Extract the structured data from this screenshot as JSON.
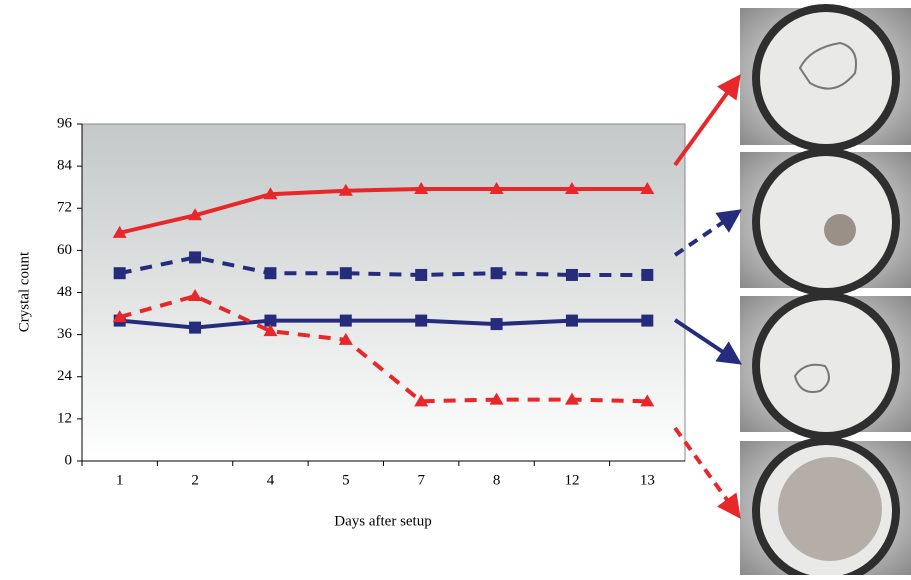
{
  "chart_data": {
    "type": "line",
    "y_label": "Crystal count",
    "x_label": "Days after setup",
    "categories": [
      "1",
      "2",
      "4",
      "5",
      "7",
      "8",
      "12",
      "13"
    ],
    "ylim": [
      0,
      96
    ],
    "yticks": [
      0,
      12,
      24,
      36,
      48,
      60,
      72,
      84,
      96
    ],
    "series": [
      {
        "color": "#e8272a",
        "dashed": false,
        "marker": "triangle",
        "values": [
          65,
          70,
          76,
          77,
          77.5,
          77.5,
          77.5,
          77.5
        ]
      },
      {
        "color": "#262c7c",
        "dashed": true,
        "marker": "square",
        "values": [
          53.5,
          58,
          53.5,
          53.5,
          53,
          53.5,
          53,
          53
        ]
      },
      {
        "color": "#262c7c",
        "dashed": false,
        "marker": "square",
        "values": [
          40,
          38,
          40,
          40,
          40,
          39,
          40,
          40
        ]
      },
      {
        "color": "#e8272a",
        "dashed": true,
        "marker": "triangle",
        "values": [
          41,
          47,
          37,
          34.5,
          17,
          17.5,
          17.5,
          17
        ]
      }
    ]
  }
}
